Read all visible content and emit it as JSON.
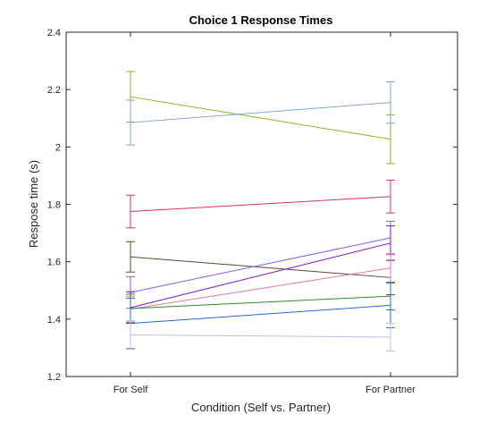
{
  "chart_data": {
    "type": "line",
    "title": "Choice 1 Response Times",
    "xlabel": "Condition (Self vs. Partner)",
    "ylabel": "Respose time (s)",
    "categories": [
      "For Self",
      "For Partner"
    ],
    "ylim": [
      1.2,
      2.4
    ],
    "yticks": [
      1.2,
      1.4,
      1.6,
      1.8,
      2.0,
      2.2,
      2.4
    ],
    "ytick_labels": [
      "1.2",
      "1.4",
      "1.6",
      "1.8",
      "2",
      "2.2",
      "2.4"
    ],
    "grid": false,
    "error_bars": true,
    "series": [
      {
        "values": [
          2.175,
          2.027
        ],
        "errors": [
          0.088,
          0.085
        ],
        "color": "#9aad1e"
      },
      {
        "values": [
          2.085,
          2.155
        ],
        "errors": [
          0.078,
          0.072
        ],
        "color": "#7ea6d8"
      },
      {
        "values": [
          1.775,
          1.827
        ],
        "errors": [
          0.057,
          0.057
        ],
        "color": "#d6336c"
      },
      {
        "values": [
          1.617,
          1.545
        ],
        "errors": [
          0.053,
          0.06
        ],
        "color": "#5c4a2a"
      },
      {
        "values": [
          1.493,
          1.683
        ],
        "errors": [
          0.055,
          0.058
        ],
        "color": "#8a5cf0"
      },
      {
        "values": [
          1.44,
          1.665
        ],
        "errors": [
          0.055,
          0.06
        ],
        "color": "#7a10d8"
      },
      {
        "values": [
          1.435,
          1.578
        ],
        "errors": [
          0.045,
          0.05
        ],
        "color": "#e07aa0"
      },
      {
        "values": [
          1.437,
          1.48
        ],
        "errors": [
          0.05,
          0.048
        ],
        "color": "#2e8b2e"
      },
      {
        "values": [
          1.385,
          1.448
        ],
        "errors": [
          0.088,
          0.078
        ],
        "color": "#2468d8"
      },
      {
        "values": [
          1.345,
          1.337
        ],
        "errors": [
          0.05,
          0.048
        ],
        "color": "#b8c0e8"
      }
    ]
  }
}
